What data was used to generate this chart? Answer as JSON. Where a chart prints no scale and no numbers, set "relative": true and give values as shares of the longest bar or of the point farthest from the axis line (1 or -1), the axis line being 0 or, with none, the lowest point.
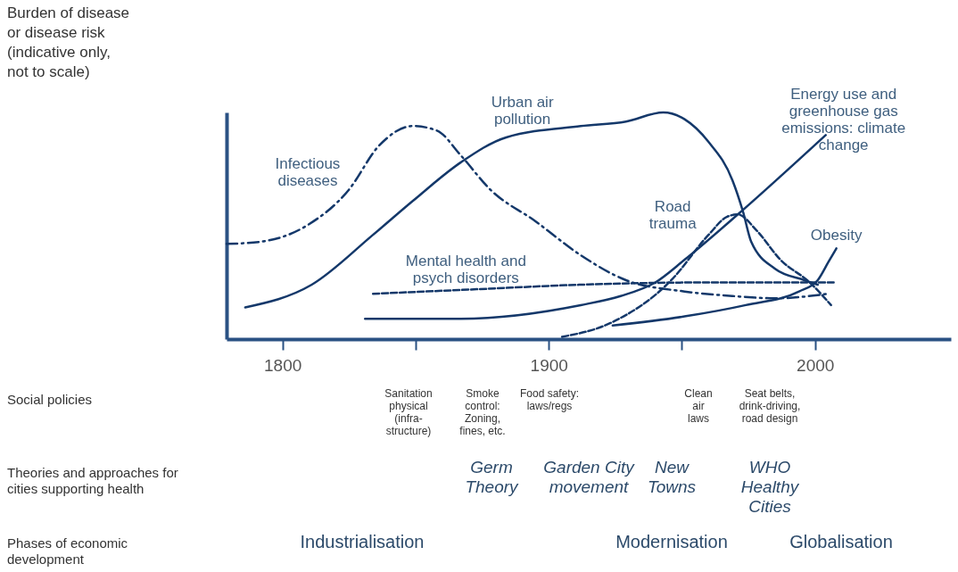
{
  "chart_data": {
    "type": "line",
    "relative": true,
    "xlim": [
      1779,
      2051
    ],
    "xticks": [
      1800,
      {
        "value": 1850,
        "label": null
      },
      1900,
      {
        "value": 1950,
        "label": null
      },
      2000
    ],
    "grid": false,
    "series": [
      {
        "name": "Infectious diseases",
        "color": "#14386a",
        "line_style": "dashdot",
        "x": [
          1779,
          1792,
          1809,
          1825,
          1836,
          1849,
          1858,
          1867,
          1878,
          1895,
          1912,
          1929,
          1951,
          1969,
          1985,
          2005
        ],
        "values": [
          0.42,
          0.43,
          0.5,
          0.66,
          0.85,
          0.94,
          0.92,
          0.81,
          0.66,
          0.52,
          0.37,
          0.26,
          0.21,
          0.19,
          0.18,
          0.2
        ]
      },
      {
        "name": "Urban air pollution",
        "color": "#14386a",
        "line_style": "solid",
        "x": [
          1786,
          1811,
          1834,
          1849,
          1867,
          1884,
          1912,
          1929,
          1943,
          1951,
          1960,
          1969,
          1973,
          1976,
          1985,
          1996,
          2001
        ],
        "values": [
          0.14,
          0.24,
          0.46,
          0.61,
          0.78,
          0.89,
          0.94,
          0.96,
          1,
          0.97,
          0.87,
          0.7,
          0.56,
          0.43,
          0.31,
          0.26,
          0.24
        ]
      },
      {
        "name": "Mental health and psych disorders",
        "color": "#14386a",
        "line_style": "dashed",
        "x": [
          1834,
          1873,
          1912,
          1960,
          2007
        ],
        "values": [
          0.2,
          0.22,
          0.24,
          0.25,
          0.25
        ]
      },
      {
        "name": "Road trauma",
        "color": "#14386a",
        "line_style": "dashed",
        "x": [
          1905,
          1923,
          1946,
          1960,
          1967,
          1971,
          1978,
          1987,
          1998,
          2006
        ],
        "values": [
          0.01,
          0.07,
          0.26,
          0.46,
          0.54,
          0.55,
          0.48,
          0.35,
          0.25,
          0.15
        ]
      },
      {
        "name": "Energy use and greenhouse gas emissions: climate change",
        "color": "#14386a",
        "line_style": "solid",
        "x": [
          1831,
          1867,
          1912,
          1927,
          1940,
          1951,
          1971,
          2004
        ],
        "values": [
          0.09,
          0.09,
          0.15,
          0.19,
          0.25,
          0.35,
          0.55,
          0.9
        ]
      },
      {
        "name": "Obesity",
        "color": "#14386a",
        "line_style": "solid",
        "x": [
          1924,
          1951,
          1974,
          1994,
          2001,
          2005,
          2008
        ],
        "values": [
          0.06,
          0.1,
          0.15,
          0.21,
          0.26,
          0.34,
          0.4
        ]
      }
    ],
    "annotations": [
      "Burden of disease or disease risk (indicative only, not to scale)",
      "Social policies",
      "Sanitation physical (infra-structure)",
      "Smoke control: Zoning, fines, etc.",
      "Food safety: laws/regs",
      "Clean air laws",
      "Seat belts, drink-driving, road design",
      "Theories and approaches for cities supporting health",
      "Germ Theory",
      "Garden City movement",
      "New Towns",
      "WHO Healthy Cities",
      "Phases of economic development",
      "Industrialisation",
      "Modernisation",
      "Globalisation"
    ]
  }
}
